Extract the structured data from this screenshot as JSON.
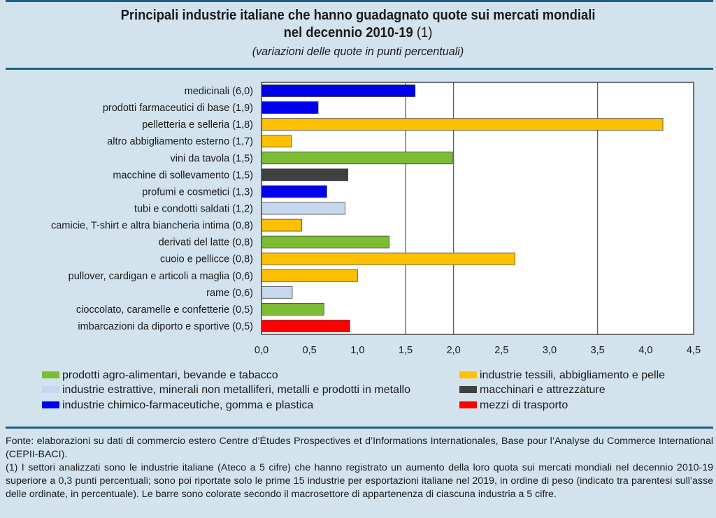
{
  "header": {
    "title_line1": "Principali industrie italiane che hanno guadagnato quote sui mercati mondiali",
    "title_line2": "nel decennio 2010-19",
    "title_note": "(1)",
    "subtitle": "(variazioni delle quote in punti percentuali)"
  },
  "colors": {
    "agro": "#7cbd34",
    "estrattive": "#c5d8ee",
    "chimico": "#0000ee",
    "tessili": "#ffc000",
    "macchinari": "#404040",
    "trasporto": "#ff0000",
    "rule": "#1d5f80",
    "background": "#d2e3ed"
  },
  "chart_data": {
    "type": "bar",
    "orientation": "horizontal",
    "title": "Principali industrie italiane che hanno guadagnato quote sui mercati mondiali nel decennio 2010-19 (1)",
    "subtitle": "(variazioni delle quote in punti percentuali)",
    "xlabel": "",
    "ylabel": "",
    "xlim": [
      0,
      4.5
    ],
    "xticks": [
      "0,0",
      "0,5",
      "1,0",
      "1,5",
      "2,0",
      "2,5",
      "3,0",
      "3,5",
      "4,0",
      "4,5"
    ],
    "xtick_values": [
      0,
      0.5,
      1.0,
      1.5,
      2.0,
      2.5,
      3.0,
      3.5,
      4.0,
      4.5
    ],
    "gridlines": [
      1.5,
      2.0,
      3.5
    ],
    "categories": [
      "medicinali (6,0)",
      "prodotti farmaceutici di base (1,9)",
      "pelletteria e selleria (1,8)",
      "altro abbigliamento esterno (1,7)",
      "vini da tavola (1,5)",
      "macchine di sollevamento (1,5)",
      "profumi e cosmetici (1,3)",
      "tubi e condotti saldati (1,2)",
      "camicie, T-shirt e altra biancheria intima (0,8)",
      "derivati del latte (0,8)",
      "cuoio e pellicce (0,8)",
      "pullover, cardigan e articoli a maglia (0,6)",
      "rame (0,6)",
      "cioccolato, caramelle e confetterie (0,5)",
      "imbarcazioni da diporto e sportive (0,5)"
    ],
    "values": [
      1.6,
      0.59,
      4.18,
      0.31,
      1.99,
      0.9,
      0.68,
      0.87,
      0.42,
      1.33,
      2.64,
      1.0,
      0.32,
      0.65,
      0.92
    ],
    "groups": [
      "chimico",
      "chimico",
      "tessili",
      "tessili",
      "agro",
      "macchinari",
      "chimico",
      "estrattive",
      "tessili",
      "agro",
      "tessili",
      "tessili",
      "estrattive",
      "agro",
      "trasporto"
    ],
    "legend": [
      {
        "key": "agro",
        "label": "prodotti agro-alimentari, bevande e tabacco"
      },
      {
        "key": "estrattive",
        "label": "industrie estrattive, minerali non metalliferi, metalli e prodotti in metallo"
      },
      {
        "key": "chimico",
        "label": "industrie chimico-farmaceutiche, gomma e plastica"
      },
      {
        "key": "tessili",
        "label": "industrie tessili, abbigliamento e pelle"
      },
      {
        "key": "macchinari",
        "label": "macchinari e attrezzature"
      },
      {
        "key": "trasporto",
        "label": "mezzi di trasporto"
      }
    ],
    "legend_position": "bottom"
  },
  "footer": {
    "source": "Fonte: elaborazioni su dati di commercio estero Centre d’Études Prospectives et d’Informations Internationales, Base pour l’Analyse du Commerce International (CEPII-BACI).",
    "note1": "(1) I settori analizzati sono le industrie italiane (Ateco a 5 cifre) che hanno registrato un aumento della loro quota sui mercati mondiali nel decennio 2010-19 superiore a 0,3 punti percentuali; sono poi riportate solo le prime 15 industrie per esportazioni italiane nel 2019, in ordine di peso (indicato tra parentesi sull’asse delle ordinate, in percentuale). Le barre sono colorate secondo il macrosettore di appartenenza di ciascuna industria a 5 cifre."
  }
}
